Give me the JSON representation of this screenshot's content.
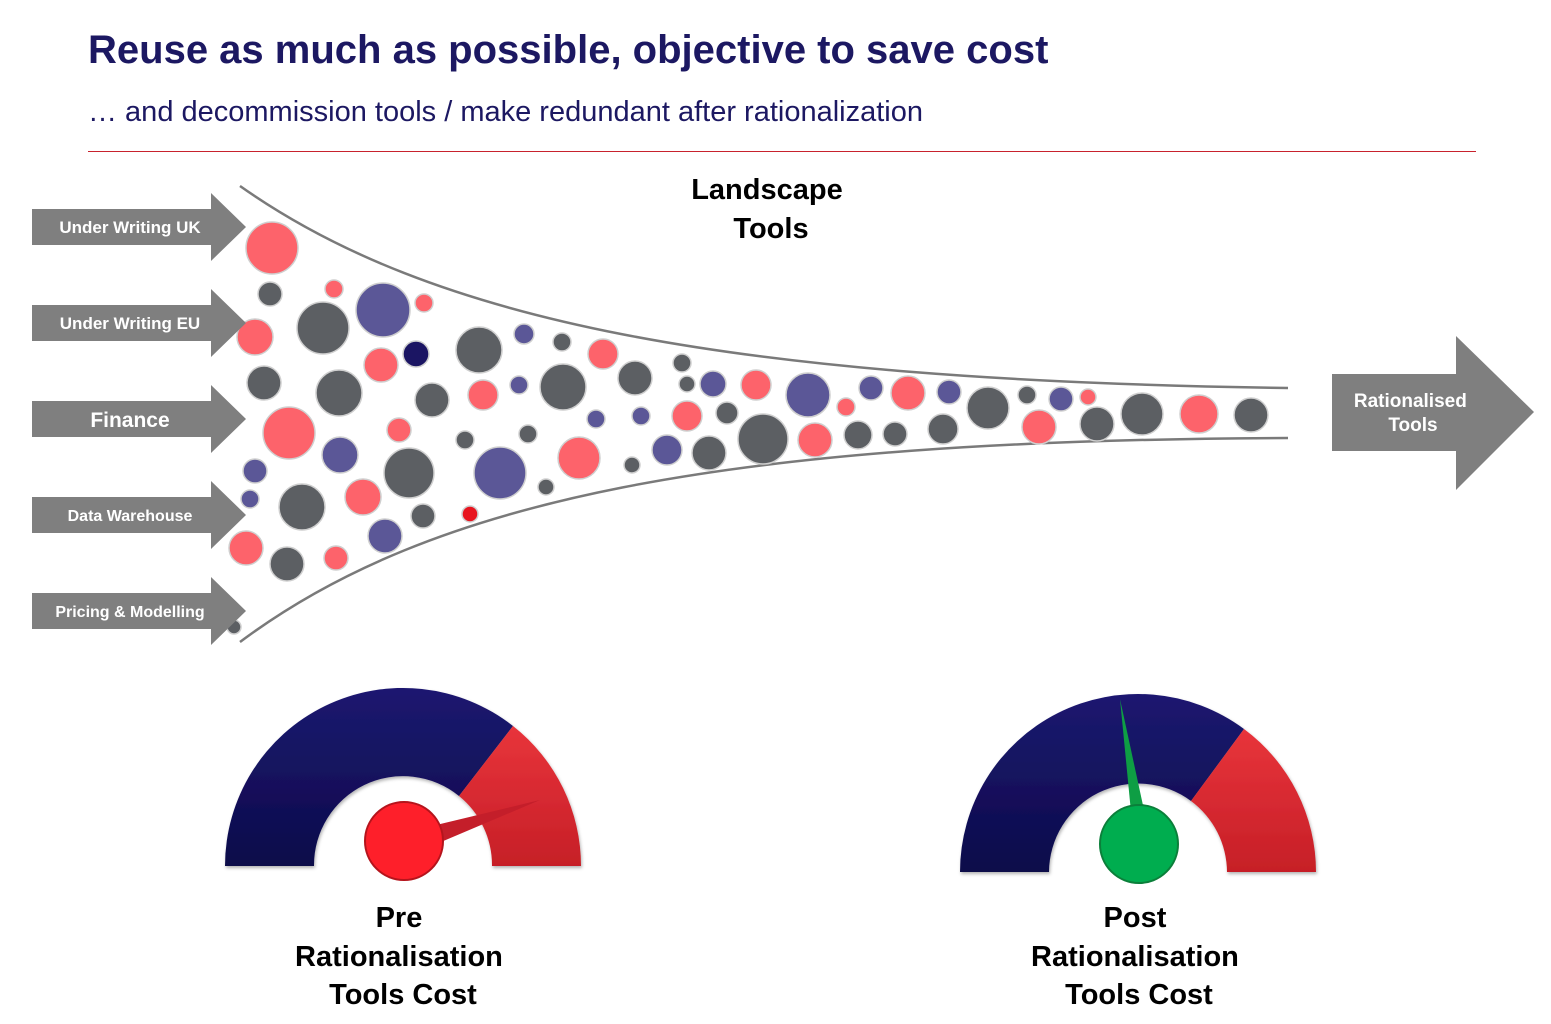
{
  "header": {
    "title": "Reuse as much as possible, objective to save cost",
    "subtitle": "… and decommission tools / make redundant after rationalization"
  },
  "funnel": {
    "label_lines": [
      "Landscape",
      "Tools"
    ],
    "inputs": [
      {
        "label": "Under Writing UK"
      },
      {
        "label": "Under Writing EU"
      },
      {
        "label": "Finance"
      },
      {
        "label": "Data Warehouse"
      },
      {
        "label": "Pricing & Modelling"
      }
    ],
    "output": {
      "label_lines": [
        "Rationalised",
        "Tools"
      ]
    }
  },
  "gauges": [
    {
      "label_lines": [
        "Pre",
        "Rationalisation",
        "Tools Cost"
      ],
      "needle_color": "#c41e2a",
      "hub_color": "#fe1f2a",
      "level": 0.8
    },
    {
      "label_lines": [
        "Post",
        "Rationalisation",
        "Tools Cost"
      ],
      "needle_color": "#0e9e44",
      "hub_color": "#00ad4f",
      "level": 0.45
    }
  ],
  "colors": {
    "title": "#1c1862",
    "rule": "#c8222d",
    "arrow": "#7f7f7f",
    "funnel_outline": "#7a7a7a",
    "bubble_red": "#fd636b",
    "bubble_grey": "#5c5f63",
    "bubble_purple": "#5b5797",
    "bubble_navy": "#1b1563",
    "bubble_bright_red": "#e8141e",
    "gauge_navy": "#14115c",
    "gauge_red": "#d9232b"
  }
}
